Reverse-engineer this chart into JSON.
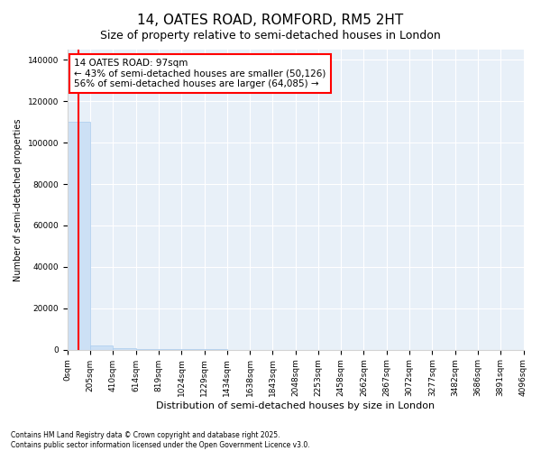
{
  "title": "14, OATES ROAD, ROMFORD, RM5 2HT",
  "subtitle": "Size of property relative to semi-detached houses in London",
  "xlabel": "Distribution of semi-detached houses by size in London",
  "ylabel": "Number of semi-detached properties",
  "property_size": 97,
  "annotation_text_line1": "14 OATES ROAD: 97sqm",
  "annotation_text_line2": "← 43% of semi-detached houses are smaller (50,126)",
  "annotation_text_line3": "56% of semi-detached houses are larger (64,085) →",
  "bin_edges": [
    0,
    205,
    410,
    614,
    819,
    1024,
    1229,
    1434,
    1638,
    1843,
    2048,
    2253,
    2458,
    2662,
    2867,
    3072,
    3277,
    3482,
    3686,
    3891,
    4096
  ],
  "bar_heights": [
    110000,
    2000,
    500,
    200,
    100,
    80,
    60,
    40,
    30,
    20,
    15,
    10,
    8,
    6,
    5,
    4,
    3,
    3,
    2,
    2
  ],
  "bar_color": "#cce0f5",
  "bar_edge_color": "#aaccee",
  "red_line_x": 97,
  "ylim": [
    0,
    145000
  ],
  "yticks": [
    0,
    20000,
    40000,
    60000,
    80000,
    100000,
    120000,
    140000
  ],
  "background_color": "#e8f0f8",
  "footer_text": "Contains HM Land Registry data © Crown copyright and database right 2025.\nContains public sector information licensed under the Open Government Licence v3.0.",
  "title_fontsize": 11,
  "subtitle_fontsize": 9,
  "xlabel_fontsize": 8,
  "ylabel_fontsize": 7,
  "tick_fontsize": 6.5,
  "annotation_fontsize": 7.5,
  "footer_fontsize": 5.5
}
